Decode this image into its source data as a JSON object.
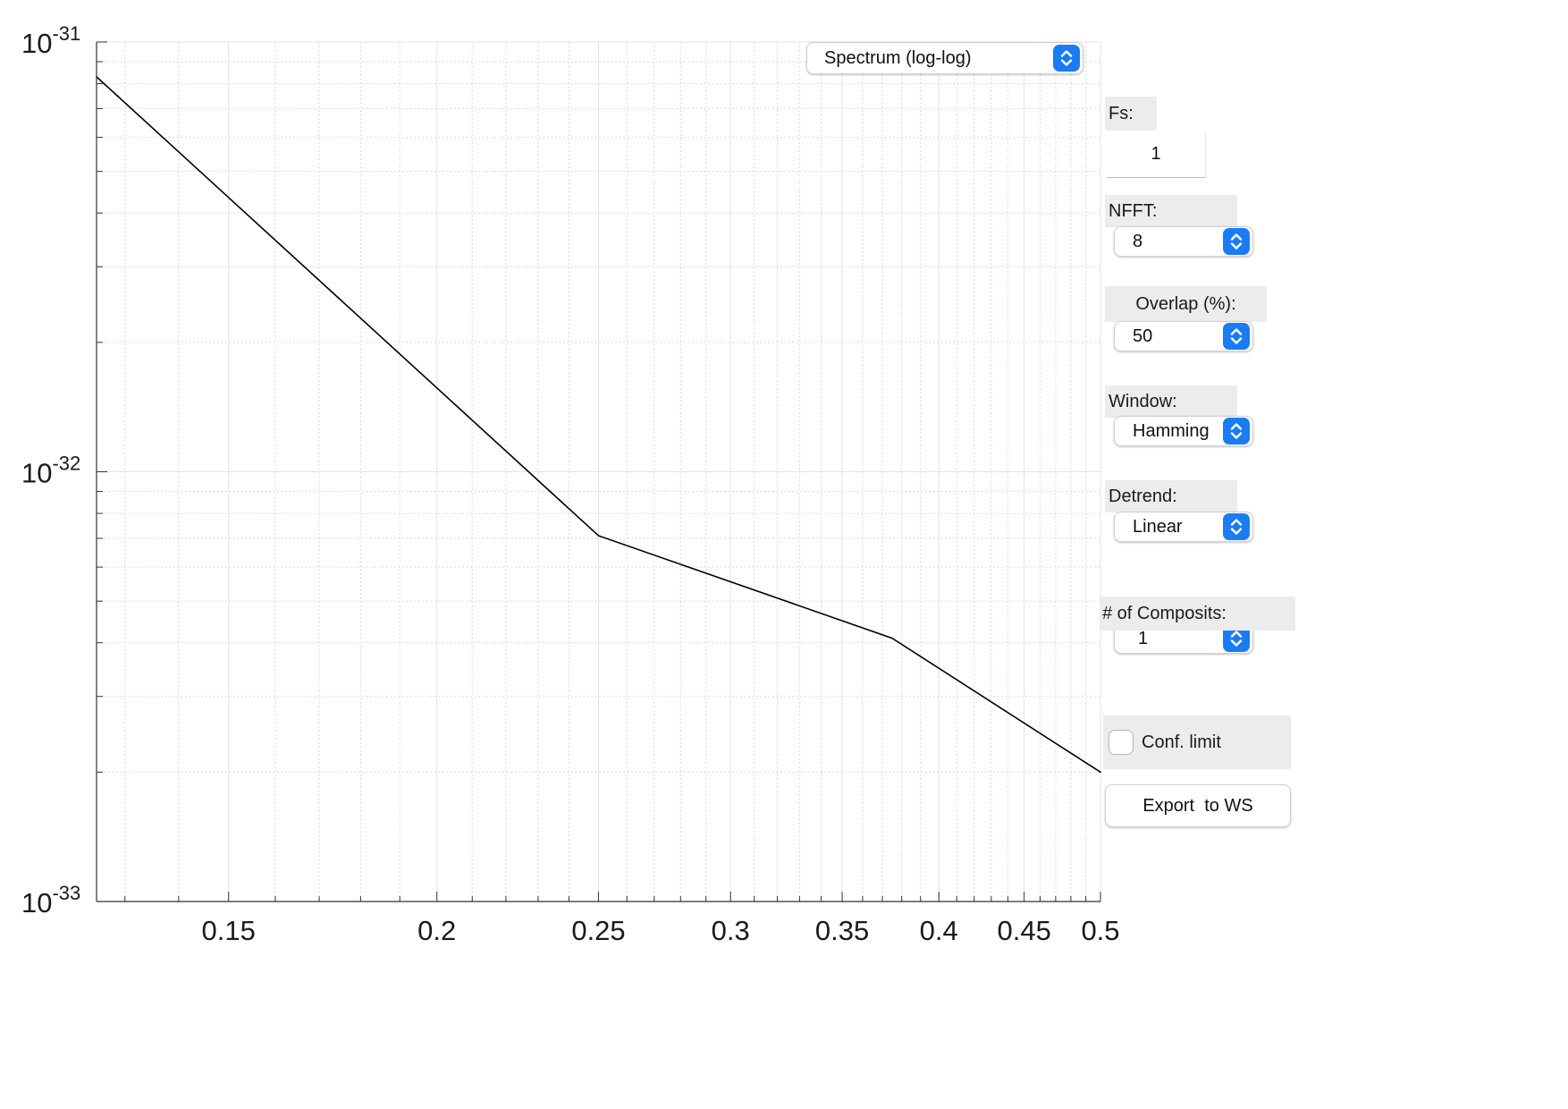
{
  "plot_mode_select": {
    "value": "Spectrum (log-log)"
  },
  "controls": {
    "fs": {
      "label": "Fs:",
      "value": "1"
    },
    "nfft": {
      "label": "NFFT:",
      "value": "8"
    },
    "overlap": {
      "label": "Overlap (%):",
      "value": "50"
    },
    "window": {
      "label": "Window:",
      "value": "Hamming"
    },
    "detrend": {
      "label": "Detrend:",
      "value": "Linear"
    },
    "composits": {
      "label": "# of Composits:",
      "value": "1"
    },
    "conf_limit": {
      "label": "Conf. limit",
      "checked": false
    },
    "export": {
      "label": "Export  to WS"
    }
  },
  "colors": {
    "accent": "#1a7cf5",
    "panel": "#ececec",
    "line": "#000000",
    "grid_major": "#e3e3e3",
    "grid_minor": "#cfcfcf"
  },
  "chart_data": {
    "type": "line",
    "title": "",
    "xlabel": "",
    "ylabel": "",
    "xscale": "log",
    "yscale": "log",
    "xlim": [
      0.125,
      0.5
    ],
    "ylim": [
      1e-33,
      1e-31
    ],
    "x_tick_values": [
      0.15,
      0.2,
      0.25,
      0.3,
      0.35,
      0.4,
      0.45,
      0.5
    ],
    "x_tick_labels": [
      "0.15",
      "0.2",
      "0.25",
      "0.3",
      "0.35",
      "0.4",
      "0.45",
      "0.5"
    ],
    "y_tick_values": [
      1e-33,
      1e-32,
      1e-31
    ],
    "y_tick_labels": [
      {
        "base": "10",
        "exp": "-33"
      },
      {
        "base": "10",
        "exp": "-32"
      },
      {
        "base": "10",
        "exp": "-31"
      }
    ],
    "grid": true,
    "minor_grid": true,
    "series": [
      {
        "x": [
          0.125,
          0.25,
          0.375,
          0.5
        ],
        "y": [
          8.3e-32,
          7.1e-33,
          4.1e-33,
          2e-33
        ]
      }
    ]
  }
}
